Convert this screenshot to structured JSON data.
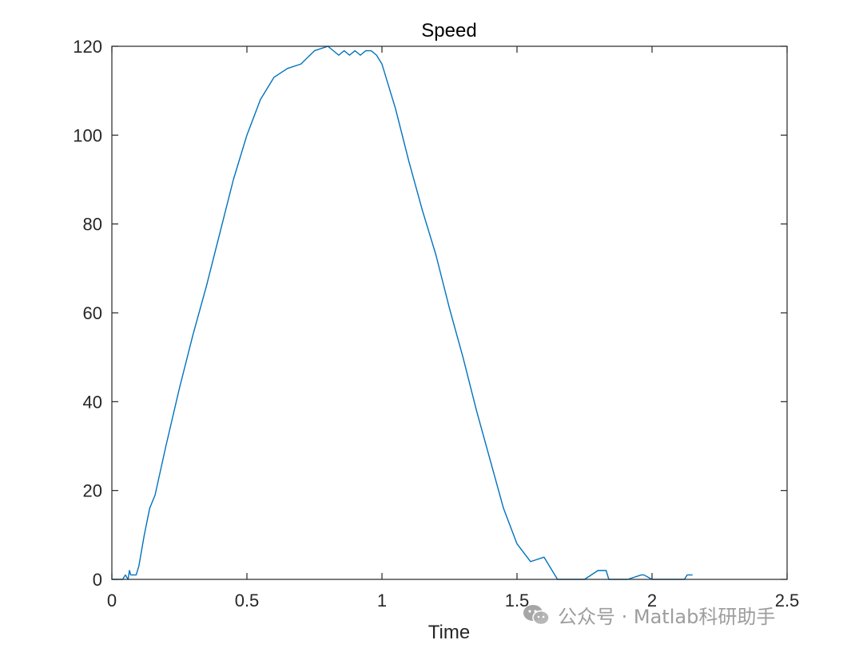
{
  "chart_data": {
    "type": "line",
    "title": "Speed",
    "xlabel": "Time",
    "ylabel": "",
    "xlim": [
      0,
      2.5
    ],
    "ylim": [
      0,
      120
    ],
    "x_ticks": [
      "0",
      "0.5",
      "1",
      "1.5",
      "2",
      "2.5"
    ],
    "y_ticks": [
      "0",
      "20",
      "40",
      "60",
      "80",
      "100",
      "120"
    ],
    "x_tick_values": [
      0,
      0.5,
      1,
      1.5,
      2,
      2.5
    ],
    "y_tick_values": [
      0,
      20,
      40,
      60,
      80,
      100,
      120
    ],
    "grid": false,
    "series": [
      {
        "color": "#0072BD",
        "x": [
          0,
          0.04,
          0.05,
          0.06,
          0.065,
          0.07,
          0.09,
          0.1,
          0.12,
          0.14,
          0.16,
          0.2,
          0.25,
          0.3,
          0.35,
          0.4,
          0.45,
          0.5,
          0.55,
          0.6,
          0.65,
          0.7,
          0.75,
          0.8,
          0.84,
          0.86,
          0.88,
          0.9,
          0.92,
          0.94,
          0.96,
          0.98,
          1.0,
          1.02,
          1.05,
          1.1,
          1.15,
          1.2,
          1.25,
          1.3,
          1.35,
          1.4,
          1.45,
          1.5,
          1.55,
          1.6,
          1.65,
          1.7,
          1.75,
          1.8,
          1.83,
          1.84,
          1.85,
          1.9,
          1.91,
          1.96,
          1.97,
          2.0,
          2.12,
          2.13,
          2.15
        ],
        "y": [
          0,
          0,
          1,
          0,
          2,
          1,
          1,
          3,
          10,
          16,
          19,
          30,
          43,
          55,
          66,
          78,
          90,
          100,
          108,
          113,
          115,
          116,
          119,
          120,
          118,
          119,
          118,
          119,
          118,
          119,
          119,
          118,
          116,
          112,
          106,
          94,
          83,
          73,
          61,
          50,
          38,
          27,
          16,
          8,
          4,
          5,
          0,
          0,
          0,
          2,
          2,
          0,
          0,
          0,
          0,
          1,
          1,
          0,
          0,
          1,
          1
        ]
      }
    ]
  },
  "watermark": {
    "text": "公众号 · Matlab科研助手",
    "icon": "wechat-icon"
  }
}
